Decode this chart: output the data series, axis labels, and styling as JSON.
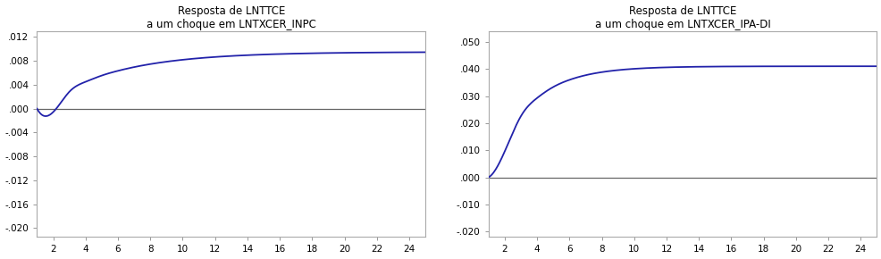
{
  "title1_line1": "Resposta de LNTTCE",
  "title1_line2": "a um choque em LNTXCER_INPC",
  "title2_line1": "Resposta de LNTTCE",
  "title2_line2": "a um choque em LNTXCER_IPA-DI",
  "plot1_ylim": [
    -0.0215,
    0.013
  ],
  "plot1_yticks": [
    -0.02,
    -0.016,
    -0.012,
    -0.008,
    -0.004,
    0.0,
    0.004,
    0.008,
    0.012
  ],
  "plot2_ylim": [
    -0.022,
    0.054
  ],
  "plot2_yticks": [
    -0.02,
    -0.01,
    0.0,
    0.01,
    0.02,
    0.03,
    0.04,
    0.05
  ],
  "xticks": [
    2,
    4,
    6,
    8,
    10,
    12,
    14,
    16,
    18,
    20,
    22,
    24
  ],
  "line_color": "#2222aa",
  "zero_line_color": "#666666",
  "bg_color": "#ffffff",
  "title_fontsize": 8.5,
  "tick_fontsize": 7.5,
  "p1_A": 0.0095,
  "p1_B": 0.022,
  "p1_k1": 0.22,
  "p1_k2": 2.2,
  "p2_A": 0.041,
  "p2_B": 0.055,
  "p2_k1": 0.42,
  "p2_k2": 2.5
}
